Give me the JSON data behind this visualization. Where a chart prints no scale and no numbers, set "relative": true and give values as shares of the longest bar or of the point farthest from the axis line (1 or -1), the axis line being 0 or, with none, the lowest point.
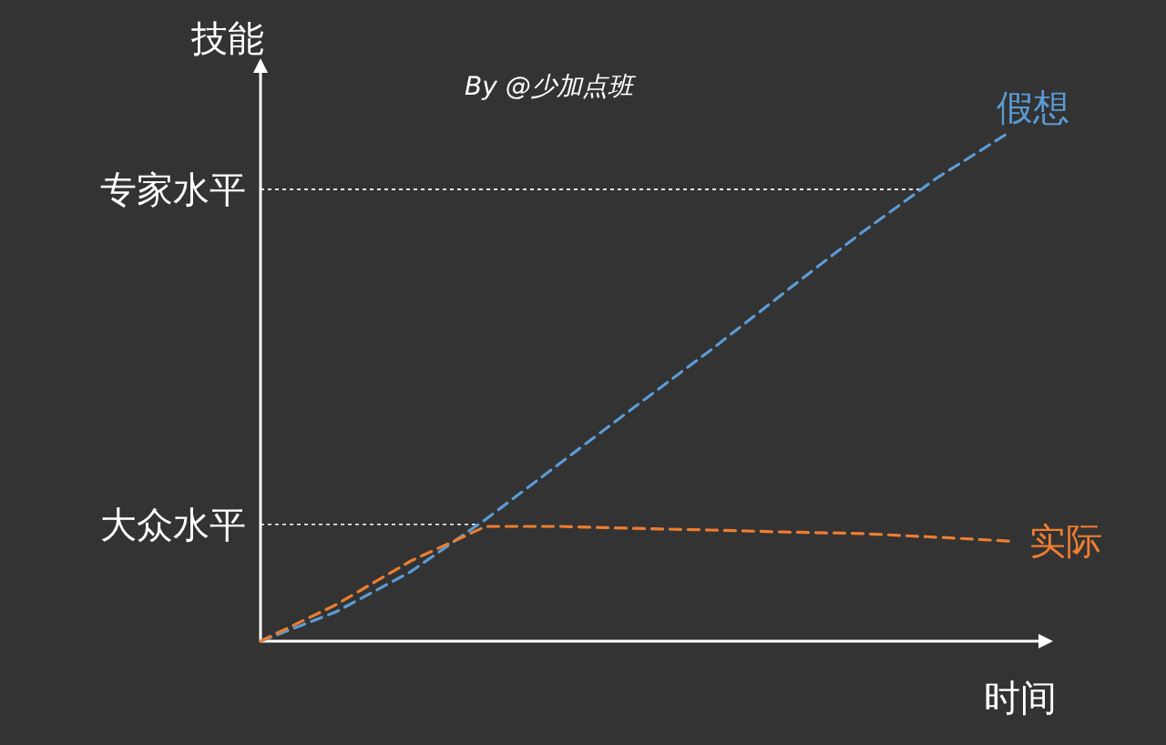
{
  "chart_data": {
    "type": "line",
    "relative": true,
    "ylabel": "技能",
    "xlabel": "时间",
    "annotations": [
      "By @少加点班"
    ],
    "line_style": "dashed",
    "categories": [
      null,
      null,
      null,
      null,
      null,
      null,
      null,
      null,
      null,
      null,
      null
    ],
    "series": [
      {
        "name": "假想",
        "color": "#5b9bd5",
        "values": [
          0,
          0.057,
          0.136,
          0.239,
          0.35,
          0.461,
          0.571,
          0.686,
          0.8,
          0.907,
          1
        ]
      },
      {
        "name": "实际",
        "color": "#ed7d31",
        "values": [
          0,
          0.071,
          0.157,
          0.225,
          0.225,
          0.221,
          0.218,
          0.214,
          0.211,
          0.204,
          0.196
        ]
      }
    ],
    "ref_lines": [
      {
        "axis": "y",
        "value": 0.886,
        "label": "专家水平",
        "color": "#ffffff",
        "line_style": "dotted"
      },
      {
        "axis": "y",
        "value": 0.229,
        "label": "大众水平",
        "color": "#ffffff",
        "line_style": "dotted"
      }
    ]
  }
}
